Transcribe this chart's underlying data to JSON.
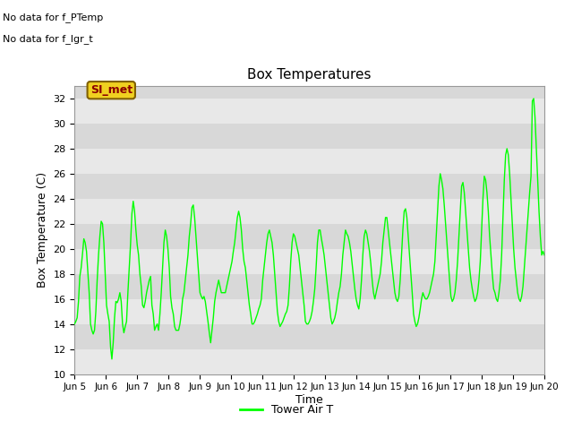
{
  "title": "Box Temperatures",
  "ylabel": "Box Temperature (C)",
  "xlabel": "Time",
  "ylim": [
    10,
    33
  ],
  "yticks": [
    10,
    12,
    14,
    16,
    18,
    20,
    22,
    24,
    26,
    28,
    30,
    32
  ],
  "xtick_labels": [
    "Jun 5",
    "Jun 6",
    "Jun 7",
    "Jun 8",
    "Jun 9",
    "Jun 10",
    "Jun 11",
    "Jun 12",
    "Jun 13",
    "Jun 14",
    "Jun 15",
    "Jun 16",
    "Jun 17",
    "Jun 18",
    "Jun 19",
    "Jun 20"
  ],
  "no_data_texts": [
    "No data for f_PTemp",
    "No data for f_lgr_t"
  ],
  "si_met_label": "SI_met",
  "line_color": "#00FF00",
  "line_label": "Tower Air T",
  "bg_color": "#D8D8D8",
  "band_color": "#E8E8E8",
  "tower_air_t": [
    14.0,
    14.2,
    14.5,
    15.8,
    17.8,
    18.5,
    19.6,
    20.8,
    20.5,
    19.8,
    18.2,
    16.5,
    14.0,
    13.5,
    13.2,
    13.5,
    15.0,
    17.5,
    19.5,
    21.0,
    22.2,
    22.0,
    20.5,
    18.0,
    15.5,
    14.8,
    14.2,
    12.2,
    11.2,
    12.5,
    14.5,
    15.8,
    15.7,
    16.0,
    16.5,
    15.8,
    14.0,
    13.3,
    13.8,
    14.2,
    16.5,
    18.5,
    20.4,
    22.8,
    23.8,
    23.0,
    21.5,
    20.3,
    19.5,
    18.0,
    17.0,
    15.5,
    15.3,
    15.8,
    16.5,
    17.0,
    17.5,
    17.8,
    15.5,
    14.8,
    13.5,
    13.8,
    14.0,
    13.5,
    14.8,
    16.5,
    18.5,
    20.5,
    21.5,
    21.0,
    20.0,
    18.5,
    16.2,
    15.3,
    14.8,
    13.8,
    13.5,
    13.5,
    13.5,
    14.0,
    14.8,
    16.0,
    16.5,
    17.5,
    18.5,
    19.5,
    21.0,
    22.0,
    23.3,
    23.5,
    22.5,
    21.0,
    19.5,
    18.0,
    16.5,
    16.2,
    16.0,
    16.2,
    15.8,
    15.0,
    14.2,
    13.3,
    12.5,
    13.5,
    14.5,
    15.8,
    16.5,
    17.0,
    17.5,
    17.0,
    16.5,
    16.5,
    16.5,
    16.5,
    17.0,
    17.5,
    18.0,
    18.5,
    19.0,
    19.8,
    20.5,
    21.5,
    22.5,
    23.0,
    22.5,
    21.5,
    20.0,
    19.0,
    18.5,
    17.5,
    16.5,
    15.5,
    14.8,
    14.0,
    14.0,
    14.2,
    14.5,
    14.8,
    15.2,
    15.5,
    16.0,
    17.5,
    18.5,
    19.5,
    20.5,
    21.2,
    21.5,
    21.0,
    20.5,
    19.5,
    18.0,
    16.5,
    15.0,
    14.2,
    13.8,
    14.0,
    14.2,
    14.5,
    14.8,
    15.0,
    15.5,
    17.0,
    19.0,
    20.5,
    21.2,
    21.0,
    20.5,
    20.0,
    19.5,
    18.5,
    17.5,
    16.5,
    15.5,
    14.2,
    14.0,
    14.0,
    14.2,
    14.5,
    15.0,
    15.8,
    16.8,
    18.5,
    20.5,
    21.5,
    21.5,
    20.8,
    20.2,
    19.5,
    18.5,
    17.5,
    16.5,
    15.5,
    14.5,
    14.0,
    14.2,
    14.5,
    15.0,
    15.8,
    16.5,
    17.0,
    18.0,
    19.5,
    20.5,
    21.5,
    21.2,
    21.0,
    20.5,
    19.8,
    18.8,
    17.8,
    16.8,
    16.0,
    15.5,
    15.2,
    16.0,
    17.5,
    19.5,
    21.0,
    21.5,
    21.2,
    20.5,
    19.8,
    18.8,
    17.5,
    16.5,
    16.0,
    16.5,
    17.0,
    17.5,
    18.0,
    19.0,
    20.5,
    21.5,
    22.5,
    22.5,
    21.5,
    20.5,
    19.5,
    18.5,
    17.5,
    16.5,
    16.0,
    15.8,
    16.2,
    17.5,
    19.5,
    21.5,
    23.0,
    23.2,
    22.5,
    21.0,
    19.5,
    18.0,
    16.5,
    14.8,
    14.2,
    13.8,
    14.0,
    14.5,
    15.2,
    16.0,
    16.5,
    16.2,
    16.0,
    16.0,
    16.2,
    16.5,
    17.0,
    17.5,
    18.0,
    19.0,
    21.0,
    23.0,
    25.0,
    26.0,
    25.5,
    24.8,
    23.5,
    22.0,
    20.5,
    19.0,
    17.5,
    16.2,
    15.8,
    16.0,
    16.5,
    17.5,
    19.0,
    21.0,
    23.0,
    25.0,
    25.3,
    24.5,
    23.0,
    21.5,
    20.0,
    18.5,
    17.5,
    16.8,
    16.2,
    15.8,
    16.0,
    16.5,
    17.5,
    19.0,
    21.5,
    24.0,
    25.8,
    25.5,
    24.5,
    23.0,
    21.0,
    19.5,
    18.0,
    16.8,
    16.5,
    16.0,
    15.8,
    16.5,
    17.5,
    19.5,
    22.5,
    25.5,
    27.5,
    28.0,
    27.5,
    26.0,
    24.0,
    22.0,
    20.0,
    18.5,
    17.5,
    16.5,
    16.0,
    15.8,
    16.2,
    17.0,
    18.5,
    20.0,
    21.5,
    23.0,
    24.5,
    25.8,
    31.8,
    32.0,
    30.5,
    28.0,
    25.5,
    23.0,
    21.0,
    19.5,
    19.8,
    19.5
  ]
}
